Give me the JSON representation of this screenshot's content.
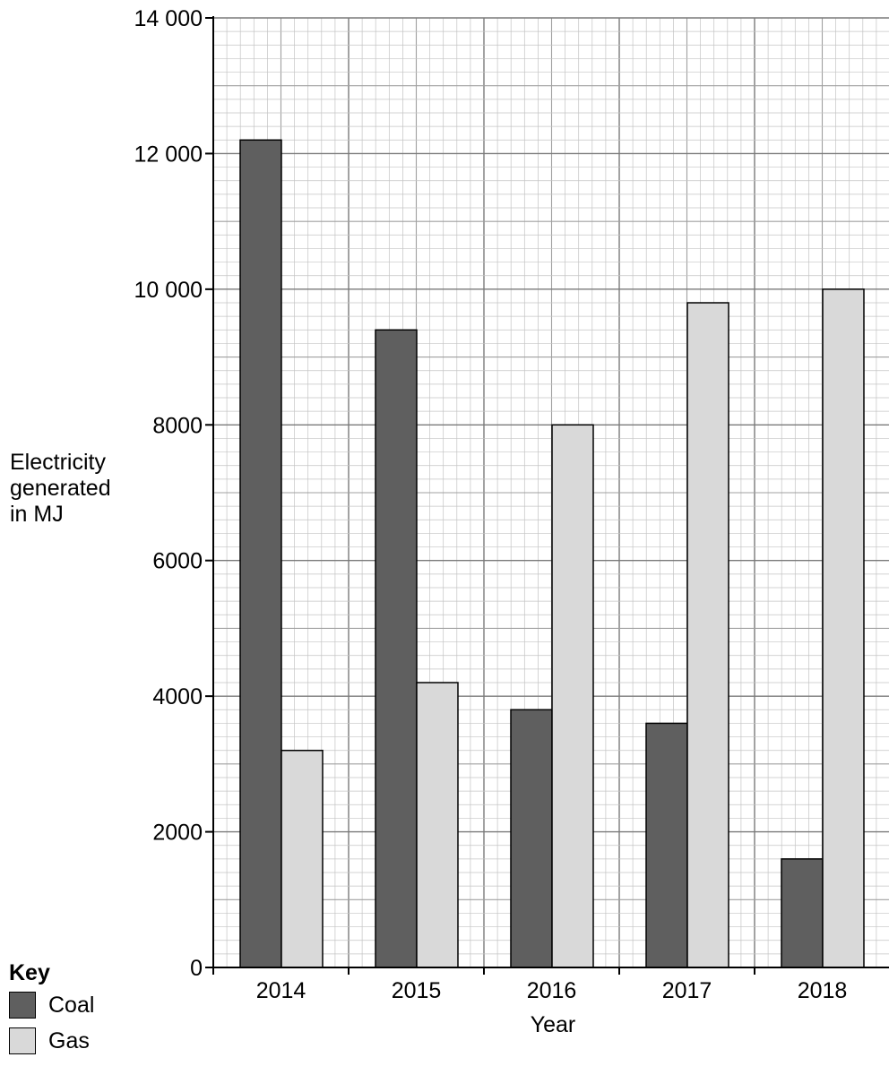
{
  "chart_data": {
    "type": "bar",
    "title": "",
    "xlabel": "Year",
    "ylabel_lines": [
      "Electricity",
      "generated",
      "in MJ"
    ],
    "categories": [
      "2014",
      "2015",
      "2016",
      "2017",
      "2018"
    ],
    "series": [
      {
        "name": "Coal",
        "color": "#5f5f5f",
        "values": [
          12200,
          9400,
          3800,
          3600,
          1600
        ]
      },
      {
        "name": "Gas",
        "color": "#d9d9d9",
        "values": [
          3200,
          4200,
          8000,
          9800,
          10000
        ]
      }
    ],
    "ylim": [
      0,
      14000
    ],
    "yticks": [
      0,
      2000,
      4000,
      6000,
      8000,
      10000,
      12000,
      14000
    ],
    "ytick_labels": [
      "0",
      "2000",
      "4000",
      "6000",
      "8000",
      "10 000",
      "12 000",
      "14 000"
    ],
    "grid": true,
    "legend": {
      "title": "Key",
      "placement": "bottom-left"
    }
  }
}
